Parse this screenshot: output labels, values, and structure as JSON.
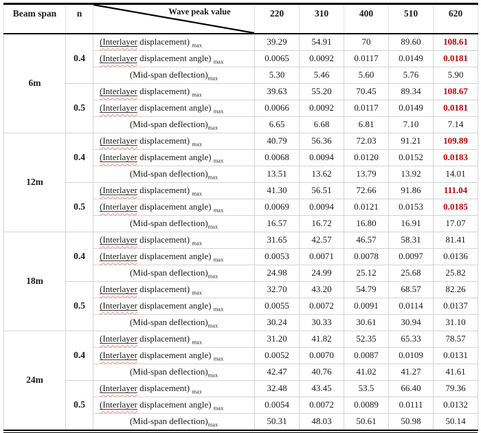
{
  "table": {
    "header": {
      "beam_span": "Beam span",
      "n": "n",
      "diagonal_label": "Wave peak value",
      "wave_peaks": [
        "220",
        "310",
        "400",
        "510",
        "620"
      ]
    },
    "metrics": {
      "displacement": {
        "underlined": "(Interlayer",
        "rest": " displacement) ",
        "sub": "max"
      },
      "angle": {
        "underlined": "(Interlayer",
        "rest": " displacement angle) ",
        "sub": "max"
      },
      "deflection": {
        "underlined": "",
        "rest": "(Mid-span deflection)",
        "sub": "max"
      }
    },
    "colors": {
      "highlight_red": "#c00000"
    },
    "groups": [
      {
        "beam_span": "6m",
        "subgroups": [
          {
            "n": "0.4",
            "rows": [
              {
                "metric": "displacement",
                "values": [
                  "39.29",
                  "54.91",
                  "70",
                  "89.60",
                  "108.61"
                ],
                "red_cols": [
                  4
                ]
              },
              {
                "metric": "angle",
                "values": [
                  "0.0065",
                  "0.0092",
                  "0.0117",
                  "0.0149",
                  "0.0181"
                ],
                "red_cols": [
                  4
                ]
              },
              {
                "metric": "deflection",
                "values": [
                  "5.30",
                  "5.46",
                  "5.60",
                  "5.76",
                  "5.90"
                ],
                "red_cols": []
              }
            ]
          },
          {
            "n": "0.5",
            "rows": [
              {
                "metric": "displacement",
                "values": [
                  "39.63",
                  "55.20",
                  "70.45",
                  "89.34",
                  "108.67"
                ],
                "red_cols": [
                  4
                ]
              },
              {
                "metric": "angle",
                "values": [
                  "0.0066",
                  "0.0092",
                  "0.0117",
                  "0.0149",
                  "0.0181"
                ],
                "red_cols": [
                  4
                ]
              },
              {
                "metric": "deflection",
                "values": [
                  "6.65",
                  "6.68",
                  "6.81",
                  "7.10",
                  "7.14"
                ],
                "red_cols": []
              }
            ]
          }
        ]
      },
      {
        "beam_span": "12m",
        "subgroups": [
          {
            "n": "0.4",
            "rows": [
              {
                "metric": "displacement",
                "values": [
                  "40.79",
                  "56.36",
                  "72.03",
                  "91.21",
                  "109.89"
                ],
                "red_cols": [
                  4
                ]
              },
              {
                "metric": "angle",
                "values": [
                  "0.0068",
                  "0.0094",
                  "0.0120",
                  "0.0152",
                  "0.0183"
                ],
                "red_cols": [
                  4
                ]
              },
              {
                "metric": "deflection",
                "values": [
                  "13.51",
                  "13.62",
                  "13.79",
                  "13.92",
                  "14.01"
                ],
                "red_cols": []
              }
            ]
          },
          {
            "n": "0.5",
            "rows": [
              {
                "metric": "displacement",
                "values": [
                  "41.30",
                  "56.51",
                  "72.66",
                  "91.86",
                  "111.04"
                ],
                "red_cols": [
                  4
                ]
              },
              {
                "metric": "angle",
                "values": [
                  "0.0069",
                  "0.0094",
                  "0.0121",
                  "0.0153",
                  "0.0185"
                ],
                "red_cols": [
                  4
                ]
              },
              {
                "metric": "deflection",
                "values": [
                  "16.57",
                  "16.72",
                  "16.80",
                  "16.91",
                  "17.07"
                ],
                "red_cols": []
              }
            ]
          }
        ]
      },
      {
        "beam_span": "18m",
        "subgroups": [
          {
            "n": "0.4",
            "rows": [
              {
                "metric": "displacement",
                "values": [
                  "31.65",
                  "42.57",
                  "46.57",
                  "58.31",
                  "81.41"
                ],
                "red_cols": []
              },
              {
                "metric": "angle",
                "values": [
                  "0.0053",
                  "0.0071",
                  "0.0078",
                  "0.0097",
                  "0.0136"
                ],
                "red_cols": []
              },
              {
                "metric": "deflection",
                "values": [
                  "24.98",
                  "24.99",
                  "25.12",
                  "25.68",
                  "25.82"
                ],
                "red_cols": []
              }
            ]
          },
          {
            "n": "0.5",
            "rows": [
              {
                "metric": "displacement",
                "values": [
                  "32.70",
                  "43.20",
                  "54.79",
                  "68.57",
                  "82.26"
                ],
                "red_cols": []
              },
              {
                "metric": "angle",
                "values": [
                  "0.0055",
                  "0.0072",
                  "0.0091",
                  "0.0114",
                  "0.0137"
                ],
                "red_cols": []
              },
              {
                "metric": "deflection",
                "values": [
                  "30.24",
                  "30.33",
                  "30.61",
                  "30.94",
                  "31.10"
                ],
                "red_cols": []
              }
            ]
          }
        ]
      },
      {
        "beam_span": "24m",
        "subgroups": [
          {
            "n": "0.4",
            "rows": [
              {
                "metric": "displacement",
                "values": [
                  "31.20",
                  "41.82",
                  "52.35",
                  "65.33",
                  "78.57"
                ],
                "red_cols": []
              },
              {
                "metric": "angle",
                "values": [
                  "0.0052",
                  "0.0070",
                  "0.0087",
                  "0.0109",
                  "0.0131"
                ],
                "red_cols": []
              },
              {
                "metric": "deflection",
                "values": [
                  "42.47",
                  "40.76",
                  "41.02",
                  "41.27",
                  "41.61"
                ],
                "red_cols": []
              }
            ]
          },
          {
            "n": "0.5",
            "rows": [
              {
                "metric": "displacement",
                "values": [
                  "32.48",
                  "43.45",
                  "53.5",
                  "66.40",
                  "79.36"
                ],
                "red_cols": []
              },
              {
                "metric": "angle",
                "values": [
                  "0.0054",
                  "0.0072",
                  "0.0089",
                  "0.0111",
                  "0.0132"
                ],
                "red_cols": []
              },
              {
                "metric": "deflection",
                "values": [
                  "50.31",
                  "48.03",
                  "50.61",
                  "50.98",
                  "50.14"
                ],
                "red_cols": []
              }
            ]
          }
        ]
      }
    ]
  }
}
